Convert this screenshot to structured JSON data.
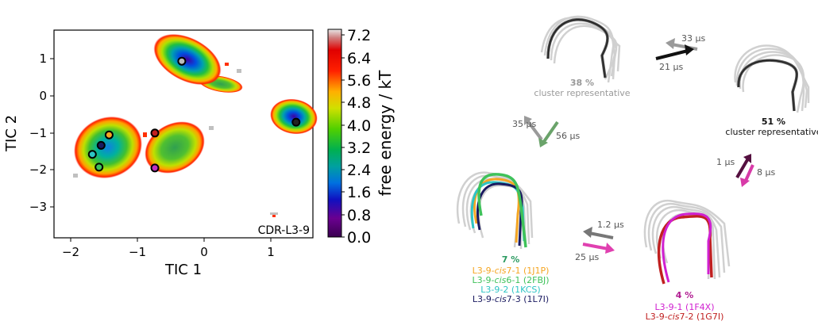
{
  "plot": {
    "xlabel": "TIC 1",
    "ylabel": "TIC 2",
    "xticks": [
      "−2",
      "−1",
      "0",
      "1"
    ],
    "yticks": [
      "1",
      "0",
      "−1",
      "−2",
      "−3"
    ],
    "xlim": [
      -2.2,
      1.65
    ],
    "ylim": [
      -3.6,
      1.75
    ],
    "label": "CDR-L3-9"
  },
  "colorbar": {
    "label": "free energy / kT",
    "ticks": [
      "7.2",
      "6.4",
      "5.6",
      "4.8",
      "4.0",
      "3.2",
      "2.4",
      "1.6",
      "0.8",
      "0.0"
    ],
    "range": [
      0.0,
      7.2
    ]
  },
  "points": [
    {
      "tic1": -0.3,
      "tic2": 0.95,
      "color": "#bbbbbb"
    },
    {
      "tic1": 1.4,
      "tic2": -0.62,
      "color": "#222222"
    },
    {
      "tic1": -1.38,
      "tic2": -0.95,
      "color": "#f5a623"
    },
    {
      "tic1": -1.5,
      "tic2": -1.22,
      "color": "#1a1a60"
    },
    {
      "tic1": -1.63,
      "tic2": -1.45,
      "color": "#2ec4c4"
    },
    {
      "tic1": -1.53,
      "tic2": -1.78,
      "color": "#3fc25a"
    },
    {
      "tic1": -0.7,
      "tic2": -0.9,
      "color": "#c22020"
    },
    {
      "tic1": -0.7,
      "tic2": -1.8,
      "color": "#c030c0"
    }
  ],
  "clusters": {
    "c38": {
      "pct": "38 %",
      "caption": "cluster representative"
    },
    "c51": {
      "pct": "51 %",
      "caption": "cluster representative"
    },
    "c7": {
      "pct": "7 %",
      "labels": [
        {
          "pre": "L3-9-",
          "it": "cis",
          "post": "7-1 (1J1P)",
          "color": "#f5a623"
        },
        {
          "pre": "L3-9-",
          "it": "cis",
          "post": "6-1 (2FBJ)",
          "color": "#3fc25a"
        },
        {
          "pre": "L3-9-2 (1KCS)",
          "it": "",
          "post": "",
          "color": "#2ec4c4"
        },
        {
          "pre": "L3-9-",
          "it": "cis",
          "post": "7-3 (1L7I)",
          "color": "#1a1a60"
        }
      ]
    },
    "c4": {
      "pct": "4 %",
      "labels": [
        {
          "pre": "L3-9-1 (1F4X)",
          "it": "",
          "post": "",
          "color": "#d020d0"
        },
        {
          "pre": "L3-9-",
          "it": "cis",
          "post": "7-2 (1G7I)",
          "color": "#c02020"
        }
      ]
    }
  },
  "transitions": {
    "t_38_51_up": "33 µs",
    "t_38_51_down": "21 µs",
    "t_38_7_up": "35 µs",
    "t_38_7_down": "56 µs",
    "t_51_4_up": "1 µs",
    "t_51_4_down": "8 µs",
    "t_7_4_up": "1.2 µs",
    "t_7_4_down": "25 µs"
  }
}
